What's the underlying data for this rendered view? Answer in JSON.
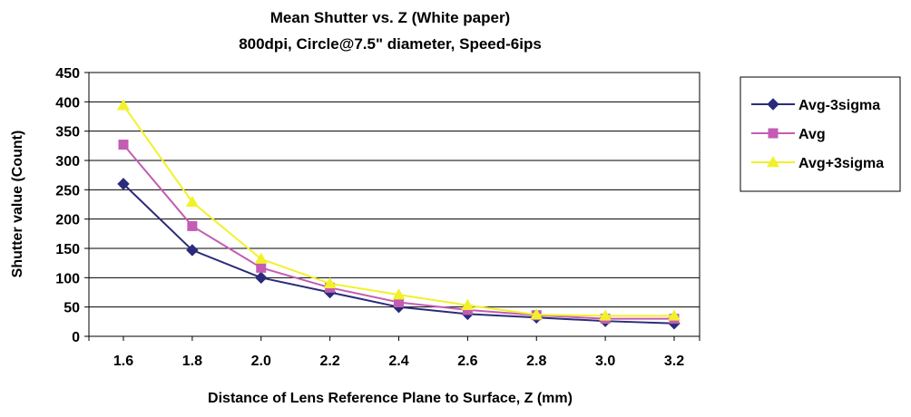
{
  "chart_data": {
    "type": "line",
    "title": "Mean Shutter vs. Z (White paper)",
    "subtitle": "800dpi, Circle@7.5\" diameter, Speed-6ips",
    "xlabel": "Distance of Lens Reference Plane to Surface, Z  (mm)",
    "ylabel": "Shutter value (Count)",
    "x_tick_labels": [
      "1.6",
      "1.8",
      "2.0",
      "2.2",
      "2.4",
      "2.6",
      "2.8",
      "3.0",
      "3.2"
    ],
    "x": [
      1.6,
      1.8,
      2.0,
      2.2,
      2.4,
      2.6,
      2.8,
      3.0,
      3.2
    ],
    "xlim": [
      1.6,
      3.2
    ],
    "y_ticks": [
      0,
      50,
      100,
      150,
      200,
      250,
      300,
      350,
      400,
      450
    ],
    "ylim": [
      0,
      450
    ],
    "grid": true,
    "legend_position": "right",
    "series": [
      {
        "name": "Avg-3sigma",
        "values": [
          260,
          147,
          100,
          75,
          50,
          38,
          32,
          26,
          22
        ],
        "color": "#2b2b7b",
        "marker": "diamond"
      },
      {
        "name": "Avg",
        "values": [
          327,
          188,
          117,
          83,
          58,
          45,
          36,
          30,
          30
        ],
        "color": "#c45cb4",
        "marker": "square"
      },
      {
        "name": "Avg+3sigma",
        "values": [
          394,
          229,
          132,
          90,
          71,
          53,
          37,
          35,
          35
        ],
        "color": "#f1f12a",
        "marker": "triangle"
      }
    ]
  }
}
